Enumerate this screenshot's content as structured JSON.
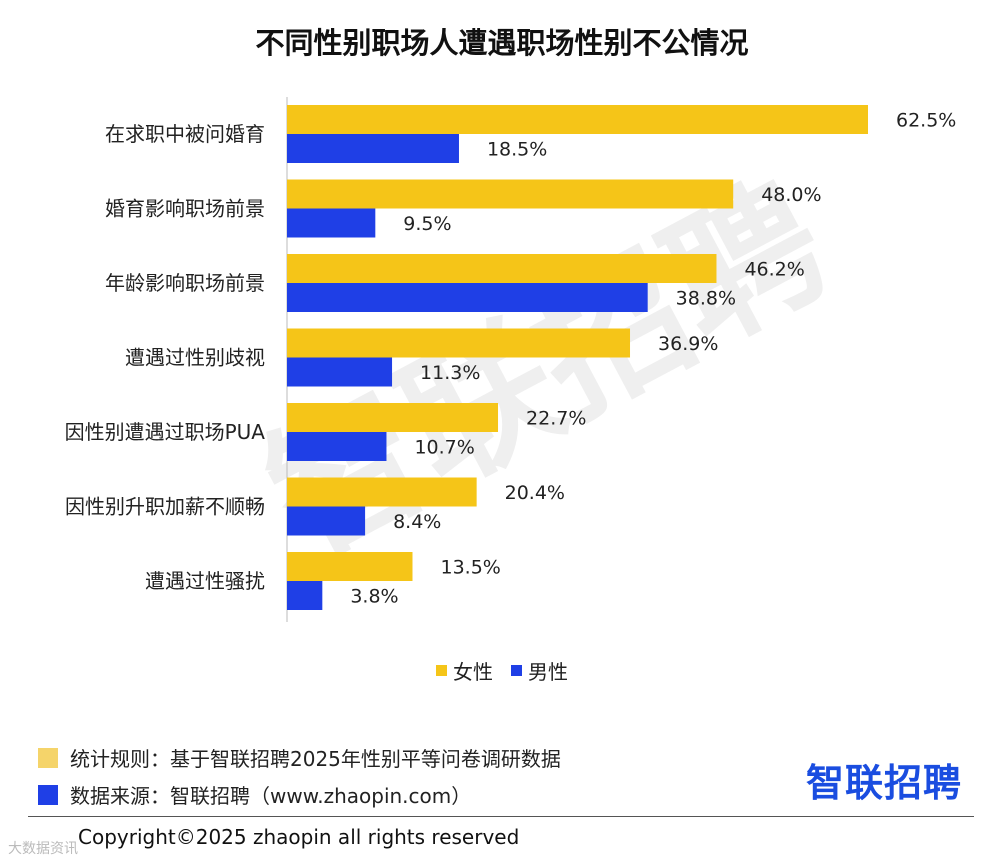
{
  "title": "不同性别职场人遭遇职场性别不公情况",
  "watermark": "智联招聘",
  "colors": {
    "female": "#f5c518",
    "male": "#1f3fe6",
    "brand": "#1a4de0",
    "note_yellow": "#f5d46a"
  },
  "chart_data": {
    "type": "bar",
    "orientation": "horizontal",
    "title": "不同性别职场人遭遇职场性别不公情况",
    "categories": [
      "在求职中被问婚育",
      "婚育影响职场前景",
      "年龄影响职场前景",
      "遭遇过性别歧视",
      "因性别遭遇过职场PUA",
      "因性别升职加薪不顺畅",
      "遭遇过性骚扰"
    ],
    "series": [
      {
        "name": "女性",
        "values": [
          62.5,
          48.0,
          46.2,
          36.9,
          22.7,
          20.4,
          13.5
        ],
        "labels": [
          "62.5%",
          "48.0%",
          "46.2%",
          "36.9%",
          "22.7%",
          "20.4%",
          "13.5%"
        ]
      },
      {
        "name": "男性",
        "values": [
          18.5,
          9.5,
          38.8,
          11.3,
          10.7,
          8.4,
          3.8
        ],
        "labels": [
          "18.5%",
          "9.5%",
          "38.8%",
          "11.3%",
          "10.7%",
          "8.4%",
          "3.8%"
        ]
      }
    ],
    "xlim": [
      0,
      62.5
    ],
    "unit": "%",
    "legend_position": "bottom"
  },
  "legend": {
    "female": "女性",
    "male": "男性"
  },
  "footer": {
    "rule_text": "统计规则：基于智联招聘2025年性别平等问卷调研数据",
    "source_text": "数据来源：智联招聘（www.zhaopin.com）",
    "brand": "智联招聘",
    "copyright": "Copyright©2025 zhaopin all rights reserved",
    "corner_mark": "大数据资讯"
  }
}
